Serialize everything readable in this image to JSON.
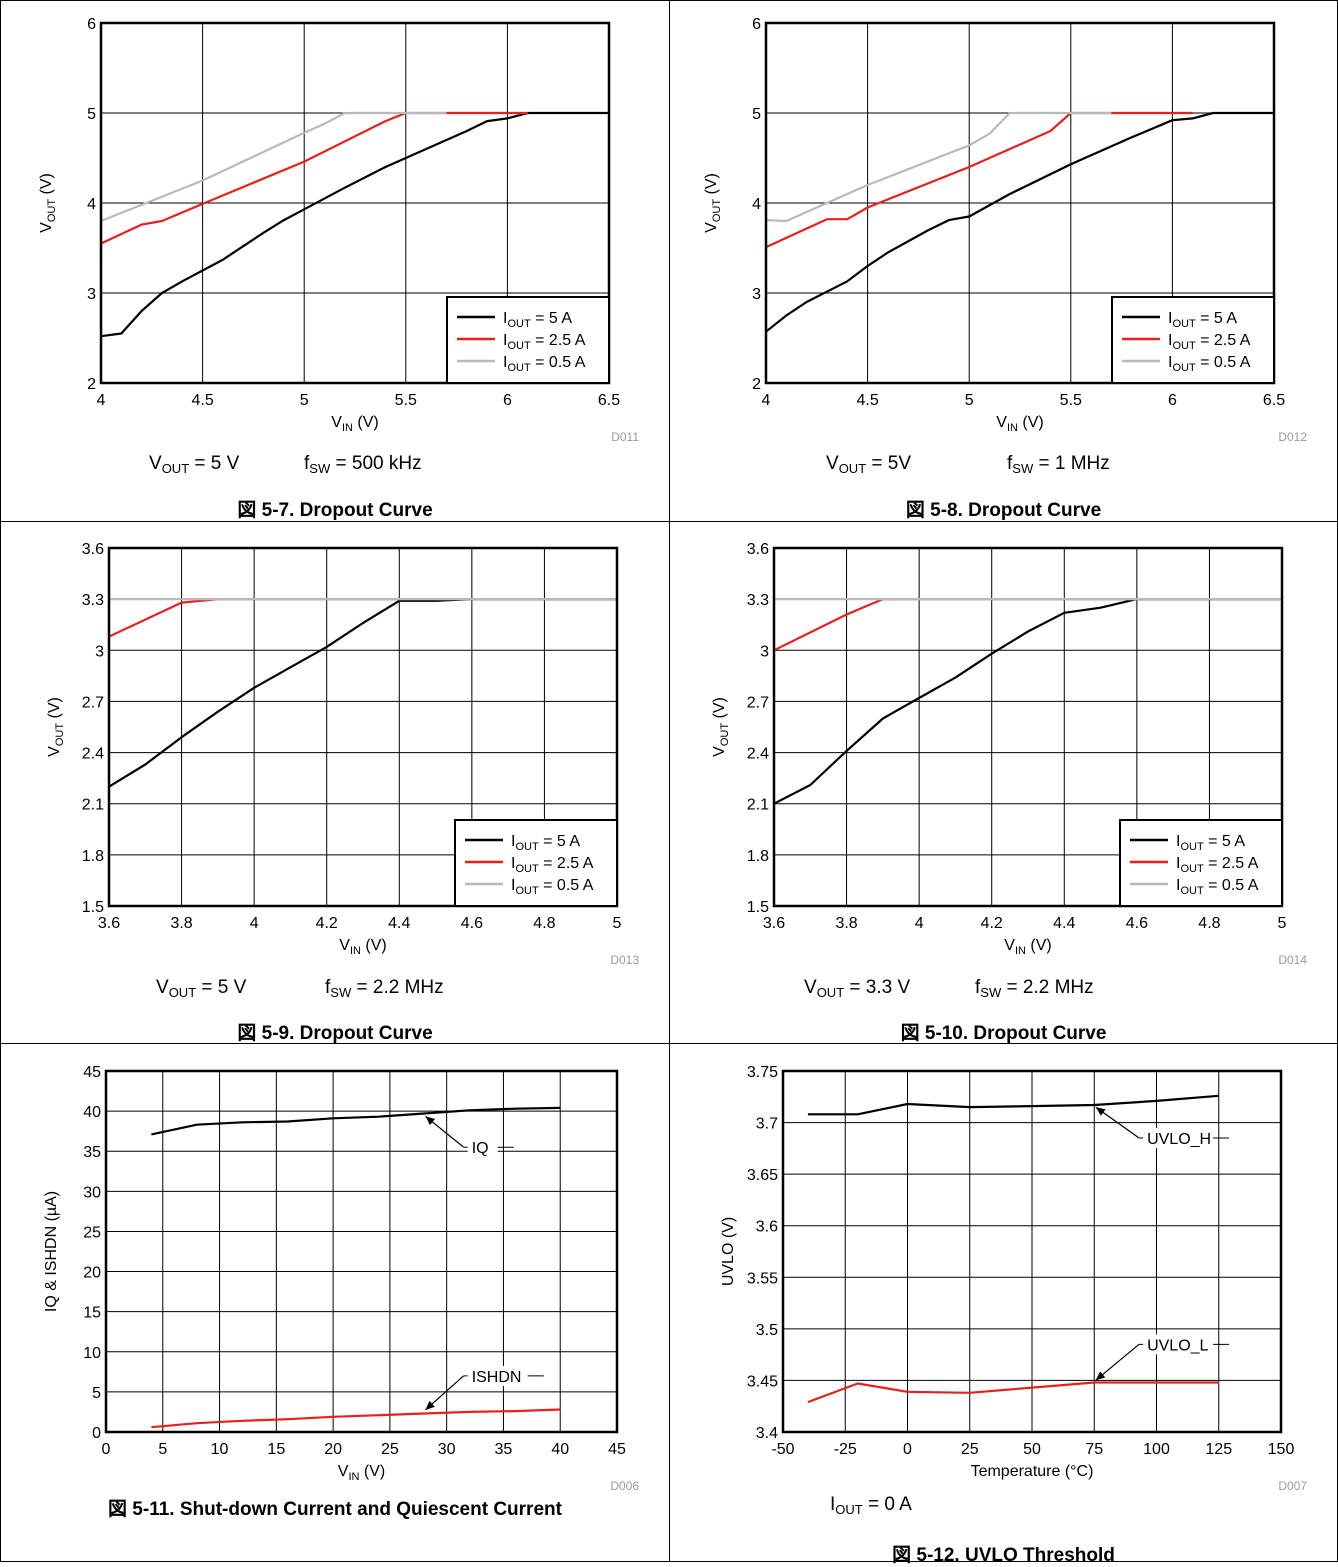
{
  "charts": [
    {
      "id": "c1",
      "caption": "図 5-7. Dropout Curve",
      "code": "D011",
      "conditions": [
        {
          "main": "V",
          "sub": "OUT",
          "rest": " = 5 V"
        },
        {
          "main": "f",
          "sub": "SW",
          "rest": " = 500 kHz"
        }
      ]
    },
    {
      "id": "c2",
      "caption": "図 5-8. Dropout Curve",
      "code": "D012",
      "conditions": [
        {
          "main": "V",
          "sub": "OUT",
          "rest": " = 5V"
        },
        {
          "main": "f",
          "sub": "SW",
          "rest": " = 1 MHz"
        }
      ]
    },
    {
      "id": "c3",
      "caption": "図 5-9. Dropout Curve",
      "code": "D013",
      "conditions": [
        {
          "main": "V",
          "sub": "OUT",
          "rest": " = 5 V"
        },
        {
          "main": "f",
          "sub": "SW",
          "rest": " = 2.2 MHz"
        }
      ]
    },
    {
      "id": "c4",
      "caption": "図 5-10. Dropout Curve",
      "code": "D014",
      "conditions": [
        {
          "main": "V",
          "sub": "OUT",
          "rest": " = 3.3 V"
        },
        {
          "main": "f",
          "sub": "SW",
          "rest": " = 2.2 MHz"
        }
      ]
    },
    {
      "id": "c5",
      "caption": "図 5-11. Shut-down Current and Quiescent Current",
      "code": "D006",
      "conditions": []
    },
    {
      "id": "c6",
      "caption": "図 5-12. UVLO Threshold",
      "code": "D007",
      "conditions": [
        {
          "main": "I",
          "sub": "OUT",
          "rest": " = 0 A"
        }
      ]
    }
  ],
  "chart_data": [
    {
      "type": "line",
      "xlabel": {
        "main": "V",
        "sub": "IN",
        "rest": " (V)"
      },
      "ylabel": {
        "main": "V",
        "sub": "OUT",
        "rest": " (V)"
      },
      "xlim": [
        4,
        6.5
      ],
      "ylim": [
        2,
        6
      ],
      "xticks": [
        "4",
        "4.5",
        "5",
        "5.5",
        "6",
        "6.5"
      ],
      "yticks": [
        "2",
        "3",
        "4",
        "5",
        "6"
      ],
      "grid": true,
      "legend": "bottom-right",
      "series": [
        {
          "name": {
            "main": "I",
            "sub": "OUT",
            "rest": " = 5 A"
          },
          "color": "#000000",
          "x": [
            4,
            4.1,
            4.2,
            4.3,
            4.4,
            4.5,
            4.6,
            4.7,
            4.8,
            4.9,
            5,
            5.2,
            5.4,
            5.6,
            5.8,
            5.9,
            6,
            6.1,
            6.2,
            6.5
          ],
          "y": [
            2.52,
            2.55,
            2.8,
            3.0,
            3.13,
            3.25,
            3.37,
            3.52,
            3.67,
            3.81,
            3.93,
            4.17,
            4.4,
            4.6,
            4.8,
            4.91,
            4.94,
            5,
            5,
            5
          ]
        },
        {
          "name": {
            "main": "I",
            "sub": "OUT",
            "rest": " = 2.5 A"
          },
          "color": "#e8201c",
          "x": [
            4,
            4.2,
            4.3,
            4.5,
            5,
            5.4,
            5.5,
            6.1
          ],
          "y": [
            3.55,
            3.76,
            3.8,
            3.99,
            4.46,
            4.91,
            5,
            5
          ]
        },
        {
          "name": {
            "main": "I",
            "sub": "OUT",
            "rest": " = 0.5 A"
          },
          "color": "#b9b9b9",
          "x": [
            4,
            4.5,
            5,
            5.1,
            5.2,
            5.7
          ],
          "y": [
            3.8,
            4.25,
            4.78,
            4.88,
            5,
            5
          ]
        }
      ]
    },
    {
      "type": "line",
      "xlabel": {
        "main": "V",
        "sub": "IN",
        "rest": " (V)"
      },
      "ylabel": {
        "main": "V",
        "sub": "OUT",
        "rest": " (V)"
      },
      "xlim": [
        4,
        6.5
      ],
      "ylim": [
        2,
        6
      ],
      "xticks": [
        "4",
        "4.5",
        "5",
        "5.5",
        "6",
        "6.5"
      ],
      "yticks": [
        "2",
        "3",
        "4",
        "5",
        "6"
      ],
      "grid": true,
      "legend": "bottom-right",
      "series": [
        {
          "name": {
            "main": "I",
            "sub": "OUT",
            "rest": " = 5 A"
          },
          "color": "#000000",
          "x": [
            4,
            4.1,
            4.2,
            4.4,
            4.5,
            4.6,
            4.8,
            4.9,
            5,
            5.2,
            5.5,
            5.8,
            6,
            6.1,
            6.2,
            6.5
          ],
          "y": [
            2.57,
            2.75,
            2.9,
            3.13,
            3.3,
            3.45,
            3.7,
            3.81,
            3.85,
            4.1,
            4.43,
            4.73,
            4.92,
            4.94,
            5,
            5
          ]
        },
        {
          "name": {
            "main": "I",
            "sub": "OUT",
            "rest": " = 2.5 A"
          },
          "color": "#e8201c",
          "x": [
            4,
            4.3,
            4.4,
            4.5,
            5,
            5.4,
            5.5,
            6.1
          ],
          "y": [
            3.51,
            3.82,
            3.82,
            3.95,
            4.4,
            4.8,
            5,
            5
          ]
        },
        {
          "name": {
            "main": "I",
            "sub": "OUT",
            "rest": " = 0.5 A"
          },
          "color": "#b9b9b9",
          "x": [
            4,
            4.1,
            4.5,
            5,
            5.1,
            5.2,
            5.7
          ],
          "y": [
            3.81,
            3.8,
            4.2,
            4.64,
            4.77,
            5,
            5
          ]
        }
      ]
    },
    {
      "type": "line",
      "xlabel": {
        "main": "V",
        "sub": "IN",
        "rest": " (V)"
      },
      "ylabel": {
        "main": "V",
        "sub": "OUT",
        "rest": " (V)"
      },
      "xlim": [
        3.6,
        5
      ],
      "ylim": [
        1.5,
        3.6
      ],
      "xticks": [
        "3.6",
        "3.8",
        "4",
        "4.2",
        "4.4",
        "4.6",
        "4.8",
        "5"
      ],
      "yticks": [
        "1.5",
        "1.8",
        "2.1",
        "2.4",
        "2.7",
        "3",
        "3.3",
        "3.6"
      ],
      "grid": true,
      "legend": "bottom-right",
      "series": [
        {
          "name": {
            "main": "I",
            "sub": "OUT",
            "rest": " = 5 A"
          },
          "color": "#000000",
          "x": [
            3.6,
            3.7,
            3.8,
            3.9,
            4,
            4.1,
            4.2,
            4.3,
            4.4,
            4.5,
            4.6,
            5
          ],
          "y": [
            2.2,
            2.33,
            2.49,
            2.64,
            2.78,
            2.9,
            3.02,
            3.16,
            3.29,
            3.29,
            3.3,
            3.3
          ]
        },
        {
          "name": {
            "main": "I",
            "sub": "OUT",
            "rest": " = 2.5 A"
          },
          "color": "#e8201c",
          "x": [
            3.6,
            3.8,
            3.9,
            5
          ],
          "y": [
            3.08,
            3.28,
            3.3,
            3.3
          ]
        },
        {
          "name": {
            "main": "I",
            "sub": "OUT",
            "rest": " = 0.5 A"
          },
          "color": "#b9b9b9",
          "x": [
            3.6,
            5
          ],
          "y": [
            3.3,
            3.3
          ]
        }
      ]
    },
    {
      "type": "line",
      "xlabel": {
        "main": "V",
        "sub": "IN",
        "rest": " (V)"
      },
      "ylabel": {
        "main": "V",
        "sub": "OUT",
        "rest": " (V)"
      },
      "xlim": [
        3.6,
        5
      ],
      "ylim": [
        1.5,
        3.6
      ],
      "xticks": [
        "3.6",
        "3.8",
        "4",
        "4.2",
        "4.4",
        "4.6",
        "4.8",
        "5"
      ],
      "yticks": [
        "1.5",
        "1.8",
        "2.1",
        "2.4",
        "2.7",
        "3",
        "3.3",
        "3.6"
      ],
      "grid": true,
      "legend": "bottom-right",
      "series": [
        {
          "name": {
            "main": "I",
            "sub": "OUT",
            "rest": " = 5 A"
          },
          "color": "#000000",
          "x": [
            3.6,
            3.7,
            3.8,
            3.9,
            4,
            4.1,
            4.2,
            4.3,
            4.4,
            4.5,
            4.6,
            5
          ],
          "y": [
            2.1,
            2.21,
            2.41,
            2.6,
            2.72,
            2.84,
            2.98,
            3.11,
            3.22,
            3.25,
            3.3,
            3.3
          ]
        },
        {
          "name": {
            "main": "I",
            "sub": "OUT",
            "rest": " = 2.5 A"
          },
          "color": "#e8201c",
          "x": [
            3.6,
            3.8,
            3.9,
            5
          ],
          "y": [
            3.0,
            3.21,
            3.3,
            3.3
          ]
        },
        {
          "name": {
            "main": "I",
            "sub": "OUT",
            "rest": " = 0.5 A"
          },
          "color": "#b9b9b9",
          "x": [
            3.6,
            5
          ],
          "y": [
            3.3,
            3.3
          ]
        }
      ]
    },
    {
      "type": "line",
      "xlabel": {
        "main": "V",
        "sub": "IN",
        "rest": " (V)"
      },
      "ylabel": {
        "main": "IQ & ISHDN (µA)",
        "sub": "",
        "rest": ""
      },
      "xlim": [
        0,
        45
      ],
      "ylim": [
        0,
        45
      ],
      "xticks": [
        "0",
        "5",
        "10",
        "15",
        "20",
        "25",
        "30",
        "35",
        "40",
        "45"
      ],
      "yticks": [
        "0",
        "5",
        "10",
        "15",
        "20",
        "25",
        "30",
        "35",
        "40",
        "45"
      ],
      "grid": true,
      "legend": "none",
      "series": [
        {
          "name": {
            "main": "IQ",
            "sub": "",
            "rest": ""
          },
          "color": "#000000",
          "x": [
            4,
            8,
            12,
            16,
            20,
            24,
            28,
            32,
            36,
            40
          ],
          "y": [
            37.1,
            38.3,
            38.6,
            38.7,
            39.1,
            39.3,
            39.7,
            40.1,
            40.3,
            40.4
          ],
          "annotation": {
            "label": "IQ",
            "x": 28,
            "y": 39.5,
            "lx": 31.5,
            "ly": 35.5
          }
        },
        {
          "name": {
            "main": "ISHDN",
            "sub": "",
            "rest": ""
          },
          "color": "#e8201c",
          "x": [
            4,
            8,
            12,
            16,
            20,
            24,
            28,
            32,
            36,
            40
          ],
          "y": [
            0.6,
            1.1,
            1.4,
            1.6,
            1.9,
            2.1,
            2.3,
            2.5,
            2.6,
            2.8
          ],
          "annotation": {
            "label": "ISHDN",
            "x": 28,
            "y": 2.6,
            "lx": 31.5,
            "ly": 7.0
          }
        }
      ]
    },
    {
      "type": "line",
      "xlabel": {
        "main": "Temperature (°C)",
        "sub": "",
        "rest": ""
      },
      "ylabel": {
        "main": "UVLO (V)",
        "sub": "",
        "rest": ""
      },
      "xlim": [
        -50,
        150
      ],
      "ylim": [
        3.4,
        3.75
      ],
      "xticks": [
        "-50",
        "-25",
        "0",
        "25",
        "50",
        "75",
        "100",
        "125",
        "150"
      ],
      "yticks": [
        "3.4",
        "3.45",
        "3.5",
        "3.55",
        "3.6",
        "3.65",
        "3.7",
        "3.75"
      ],
      "grid": true,
      "legend": "none",
      "series": [
        {
          "name": {
            "main": "UVLO_H",
            "sub": "",
            "rest": ""
          },
          "color": "#000000",
          "x": [
            -40,
            -20,
            0,
            25,
            50,
            75,
            100,
            125
          ],
          "y": [
            3.708,
            3.708,
            3.718,
            3.715,
            3.716,
            3.717,
            3.721,
            3.726
          ],
          "annotation": {
            "label": "UVLO_H",
            "x": 75,
            "y": 3.716,
            "lx": 93,
            "ly": 3.685
          }
        },
        {
          "name": {
            "main": "UVLO_L",
            "sub": "",
            "rest": ""
          },
          "color": "#e8201c",
          "x": [
            -40,
            -20,
            0,
            25,
            50,
            75,
            100,
            125
          ],
          "y": [
            3.429,
            3.447,
            3.439,
            3.438,
            3.443,
            3.448,
            3.448,
            3.448
          ],
          "annotation": {
            "label": "UVLO_L",
            "x": 75,
            "y": 3.449,
            "lx": 93,
            "ly": 3.485
          }
        }
      ]
    }
  ]
}
